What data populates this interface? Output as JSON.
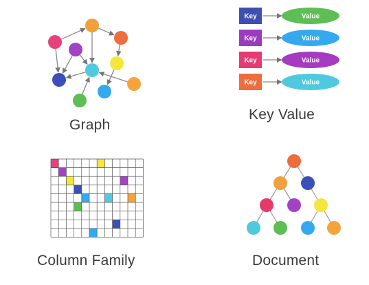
{
  "captions": {
    "graph": "Graph",
    "key_value": "Key Value",
    "column_family": "Column Family",
    "document": "Document"
  },
  "key_value": {
    "rows": [
      {
        "key": "Key",
        "value": "Value",
        "key_color": "#3e4fb0",
        "value_color": "#5ebd55"
      },
      {
        "key": "Key",
        "value": "Value",
        "key_color": "#9b3bbf",
        "value_color": "#35a9ee"
      },
      {
        "key": "Key",
        "value": "Value",
        "key_color": "#e63a73",
        "value_color": "#a43bc0"
      },
      {
        "key": "Key",
        "value": "Value",
        "key_color": "#ef6c3c",
        "value_color": "#4fc9df"
      }
    ]
  },
  "graph": {
    "nodes": [
      {
        "color": "#e6417a"
      },
      {
        "color": "#f0a03c"
      },
      {
        "color": "#ef6c3c"
      },
      {
        "color": "#a143c4"
      },
      {
        "color": "#f5e63c"
      },
      {
        "color": "#3a4fb8"
      },
      {
        "color": "#4fc9df"
      },
      {
        "color": "#f5a43c"
      },
      {
        "color": "#35a9ee"
      },
      {
        "color": "#5ebd55"
      }
    ]
  },
  "column_family": {
    "rows": 9,
    "cols": 12,
    "filled": [
      {
        "row": 0,
        "col": 0,
        "color": "#e6417a"
      },
      {
        "row": 0,
        "col": 6,
        "color": "#f5e63c"
      },
      {
        "row": 1,
        "col": 1,
        "color": "#a143c4"
      },
      {
        "row": 2,
        "col": 2,
        "color": "#f5e63c"
      },
      {
        "row": 2,
        "col": 9,
        "color": "#a143c4"
      },
      {
        "row": 3,
        "col": 3,
        "color": "#3a4fb8"
      },
      {
        "row": 4,
        "col": 4,
        "color": "#35a9ee"
      },
      {
        "row": 4,
        "col": 7,
        "color": "#4fc9df"
      },
      {
        "row": 4,
        "col": 10,
        "color": "#f5a43c"
      },
      {
        "row": 5,
        "col": 3,
        "color": "#5ebd55"
      },
      {
        "row": 7,
        "col": 8,
        "color": "#3a4fb8"
      },
      {
        "row": 8,
        "col": 5,
        "color": "#35a9ee"
      }
    ]
  },
  "document": {
    "nodes": [
      {
        "color": "#ef6c3c"
      },
      {
        "color": "#f0a03c"
      },
      {
        "color": "#3a4fb8"
      },
      {
        "color": "#e63a6a"
      },
      {
        "color": "#a143c4"
      },
      {
        "color": "#f5e63c"
      },
      {
        "color": "#4fc9df"
      },
      {
        "color": "#5ebd55"
      },
      {
        "color": "#35a9ee"
      },
      {
        "color": "#f5a43c"
      }
    ]
  }
}
